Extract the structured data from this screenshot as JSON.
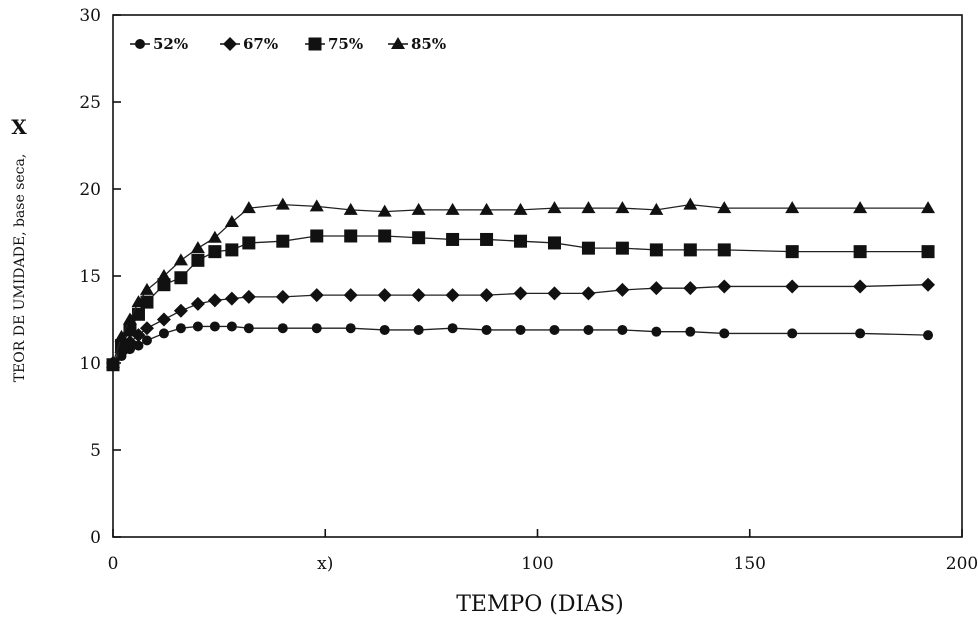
{
  "chart_data": {
    "type": "line",
    "xlabel": "TEMPO (DIAS)",
    "ylabel": "TEOR DE UMIDADE, base seca,",
    "ylabel_symbol": "X",
    "xlim": [
      0,
      200
    ],
    "ylim": [
      0,
      30
    ],
    "x_ticks": [
      "0",
      "x)",
      "100",
      "150",
      "200"
    ],
    "y_ticks": [
      "0",
      "5",
      "10",
      "15",
      "20",
      "25",
      "30"
    ],
    "grid": false,
    "legend_position": "top-left",
    "series": [
      {
        "name": "52%",
        "marker": "circle",
        "x": [
          0,
          2,
          4,
          6,
          8,
          12,
          16,
          20,
          24,
          28,
          32,
          40,
          48,
          56,
          64,
          72,
          80,
          88,
          96,
          104,
          112,
          120,
          128,
          136,
          144,
          160,
          176,
          192
        ],
        "y": [
          10.0,
          10.4,
          10.8,
          11.0,
          11.3,
          11.7,
          12.0,
          12.1,
          12.1,
          12.1,
          12.0,
          12.0,
          12.0,
          12.0,
          11.9,
          11.9,
          12.0,
          11.9,
          11.9,
          11.9,
          11.9,
          11.9,
          11.8,
          11.8,
          11.7,
          11.7,
          11.7,
          11.6
        ]
      },
      {
        "name": "67%",
        "marker": "diamond",
        "x": [
          0,
          2,
          4,
          6,
          8,
          12,
          16,
          20,
          24,
          28,
          32,
          40,
          48,
          56,
          64,
          72,
          80,
          88,
          96,
          104,
          112,
          120,
          128,
          136,
          144,
          160,
          176,
          192
        ],
        "y": [
          10.0,
          10.6,
          11.2,
          11.6,
          12.0,
          12.5,
          13.0,
          13.4,
          13.6,
          13.7,
          13.8,
          13.8,
          13.9,
          13.9,
          13.9,
          13.9,
          13.9,
          13.9,
          14.0,
          14.0,
          14.0,
          14.2,
          14.3,
          14.3,
          14.4,
          14.4,
          14.4,
          14.5
        ]
      },
      {
        "name": "75%",
        "marker": "square",
        "x": [
          0,
          2,
          4,
          6,
          8,
          12,
          16,
          20,
          24,
          28,
          32,
          40,
          48,
          56,
          64,
          72,
          80,
          88,
          96,
          104,
          112,
          120,
          128,
          136,
          144,
          160,
          176,
          192
        ],
        "y": [
          9.9,
          11.0,
          11.9,
          12.8,
          13.5,
          14.5,
          14.9,
          15.9,
          16.4,
          16.5,
          16.9,
          17.0,
          17.3,
          17.3,
          17.3,
          17.2,
          17.1,
          17.1,
          17.0,
          16.9,
          16.6,
          16.6,
          16.5,
          16.5,
          16.5,
          16.4,
          16.4,
          16.4
        ]
      },
      {
        "name": "85%",
        "marker": "triangle",
        "x": [
          0,
          2,
          4,
          6,
          8,
          12,
          16,
          20,
          24,
          28,
          32,
          40,
          48,
          56,
          64,
          72,
          80,
          88,
          96,
          104,
          112,
          120,
          128,
          136,
          144,
          160,
          176,
          192
        ],
        "y": [
          10.0,
          11.5,
          12.5,
          13.5,
          14.2,
          15.0,
          15.9,
          16.6,
          17.2,
          18.1,
          18.9,
          19.1,
          19.0,
          18.8,
          18.7,
          18.8,
          18.8,
          18.8,
          18.8,
          18.9,
          18.9,
          18.9,
          18.8,
          19.1,
          18.9,
          18.9,
          18.9,
          18.9
        ]
      }
    ]
  }
}
